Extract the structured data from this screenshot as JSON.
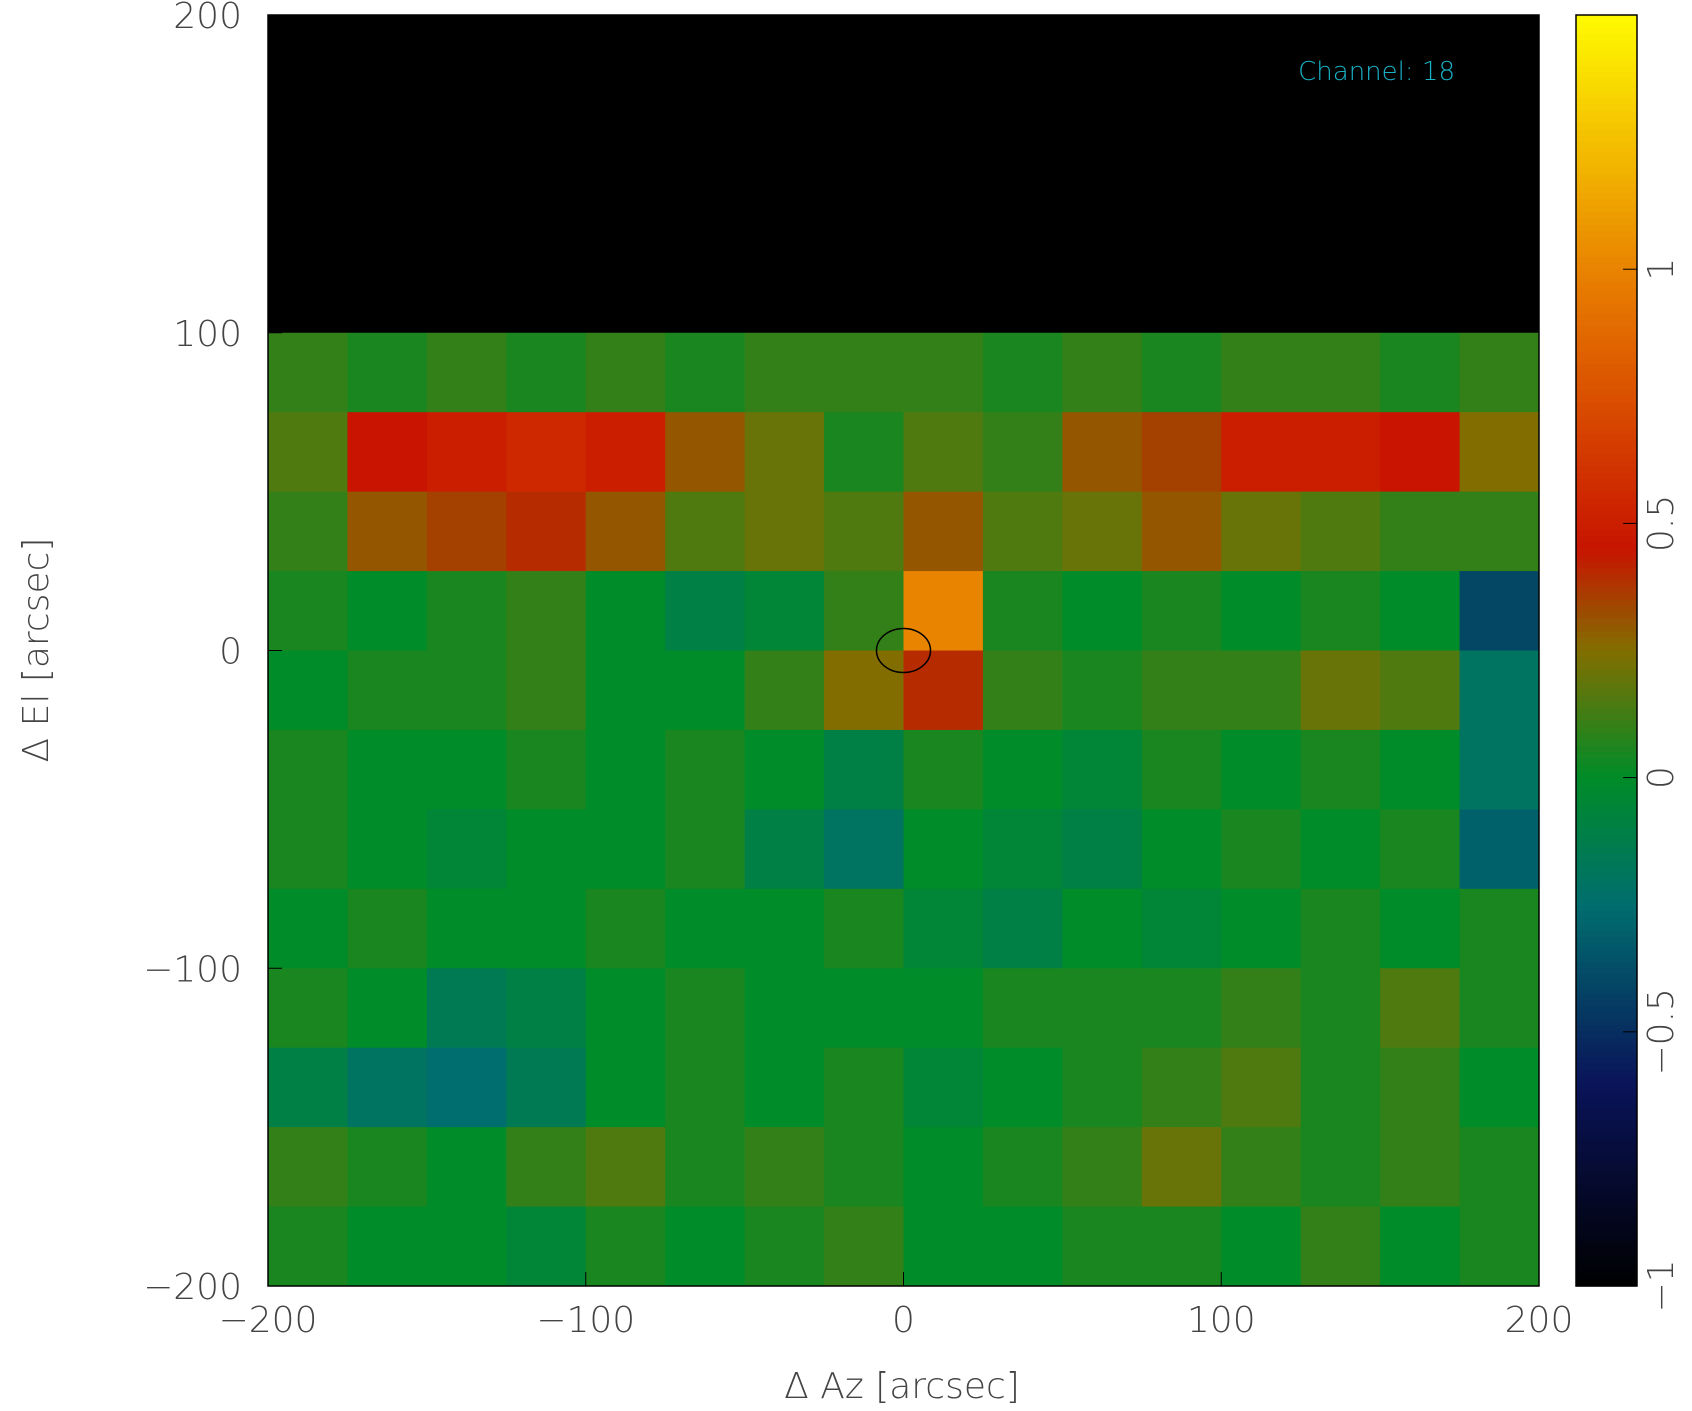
{
  "chart_data": {
    "type": "heatmap",
    "annotation": "Channel: 18",
    "x_label": "Δ Az [arcsec]",
    "y_label": "Δ El [arcsec]",
    "xlim": [
      -200,
      200
    ],
    "ylim": [
      -200,
      200
    ],
    "xticks": [
      {
        "value": -200,
        "label": "−200"
      },
      {
        "value": -100,
        "label": "−100"
      },
      0,
      100,
      200
    ],
    "yticks": [
      {
        "value": -200,
        "label": "−200"
      },
      {
        "value": -100,
        "label": "−100"
      },
      0,
      100,
      200
    ],
    "zlim": [
      -1,
      1.5
    ],
    "zticks": [
      {
        "value": -1,
        "label": "−1"
      },
      {
        "value": -0.5,
        "label": "−0.5"
      },
      0,
      0.5,
      1
    ],
    "z": [
      [
        null,
        null,
        null,
        null,
        null,
        null,
        null,
        null,
        null,
        null,
        null,
        null,
        null,
        null,
        null,
        null
      ],
      [
        null,
        null,
        null,
        null,
        null,
        null,
        null,
        null,
        null,
        null,
        null,
        null,
        null,
        null,
        null,
        null
      ],
      [
        null,
        null,
        null,
        null,
        null,
        null,
        null,
        null,
        null,
        null,
        null,
        null,
        null,
        null,
        null,
        null
      ],
      [
        null,
        null,
        null,
        null,
        null,
        null,
        null,
        null,
        null,
        null,
        null,
        null,
        null,
        null,
        null,
        null
      ],
      [
        0.1,
        0.05,
        0.1,
        0.05,
        0.1,
        0.05,
        0.1,
        0.1,
        0.1,
        0.05,
        0.1,
        0.05,
        0.1,
        0.1,
        0.05,
        0.1
      ],
      [
        0.15,
        0.45,
        0.5,
        0.55,
        0.5,
        0.3,
        0.2,
        0.05,
        0.15,
        0.1,
        0.3,
        0.35,
        0.5,
        0.5,
        0.45,
        0.25
      ],
      [
        0.1,
        0.3,
        0.35,
        0.4,
        0.3,
        0.15,
        0.2,
        0.15,
        0.3,
        0.15,
        0.2,
        0.3,
        0.2,
        0.15,
        0.1,
        0.1
      ],
      [
        0.05,
        0,
        0.05,
        0.1,
        0,
        -0.1,
        -0.05,
        0.1,
        1.0,
        0.05,
        0,
        0.05,
        0,
        0.05,
        0,
        -0.4
      ],
      [
        0,
        0.05,
        0.05,
        0.1,
        0,
        0,
        0.1,
        0.25,
        0.4,
        0.1,
        0.05,
        0.1,
        0.1,
        0.2,
        0.15,
        -0.2
      ],
      [
        0.05,
        0,
        0,
        0.05,
        0,
        0.05,
        0,
        -0.1,
        0.05,
        0,
        -0.05,
        0.05,
        0,
        0.05,
        0,
        -0.2
      ],
      [
        0.05,
        0,
        -0.05,
        0,
        0,
        0.05,
        -0.1,
        -0.2,
        0,
        -0.05,
        -0.1,
        0,
        0.05,
        0,
        0.05,
        -0.3
      ],
      [
        0,
        0.05,
        0,
        0,
        0.05,
        0,
        0,
        0.05,
        -0.05,
        -0.1,
        0,
        -0.05,
        0,
        0.05,
        0,
        0.05
      ],
      [
        0.05,
        0,
        -0.15,
        -0.1,
        0,
        0.05,
        0,
        0,
        0,
        0.05,
        0.05,
        0.05,
        0.1,
        0.05,
        0.15,
        0.05
      ],
      [
        -0.1,
        -0.2,
        -0.25,
        -0.15,
        0,
        0.05,
        0,
        0.05,
        -0.05,
        0,
        0.05,
        0.1,
        0.15,
        0.05,
        0.1,
        0
      ],
      [
        0.1,
        0.05,
        0,
        0.1,
        0.15,
        0.05,
        0.1,
        0.05,
        0,
        0.05,
        0.1,
        0.2,
        0.1,
        0.05,
        0.1,
        0.05
      ],
      [
        0.05,
        0,
        0,
        -0.05,
        0.05,
        0,
        0.05,
        0.1,
        0,
        0,
        0.05,
        0.05,
        0,
        0.1,
        0,
        0.05
      ]
    ]
  }
}
